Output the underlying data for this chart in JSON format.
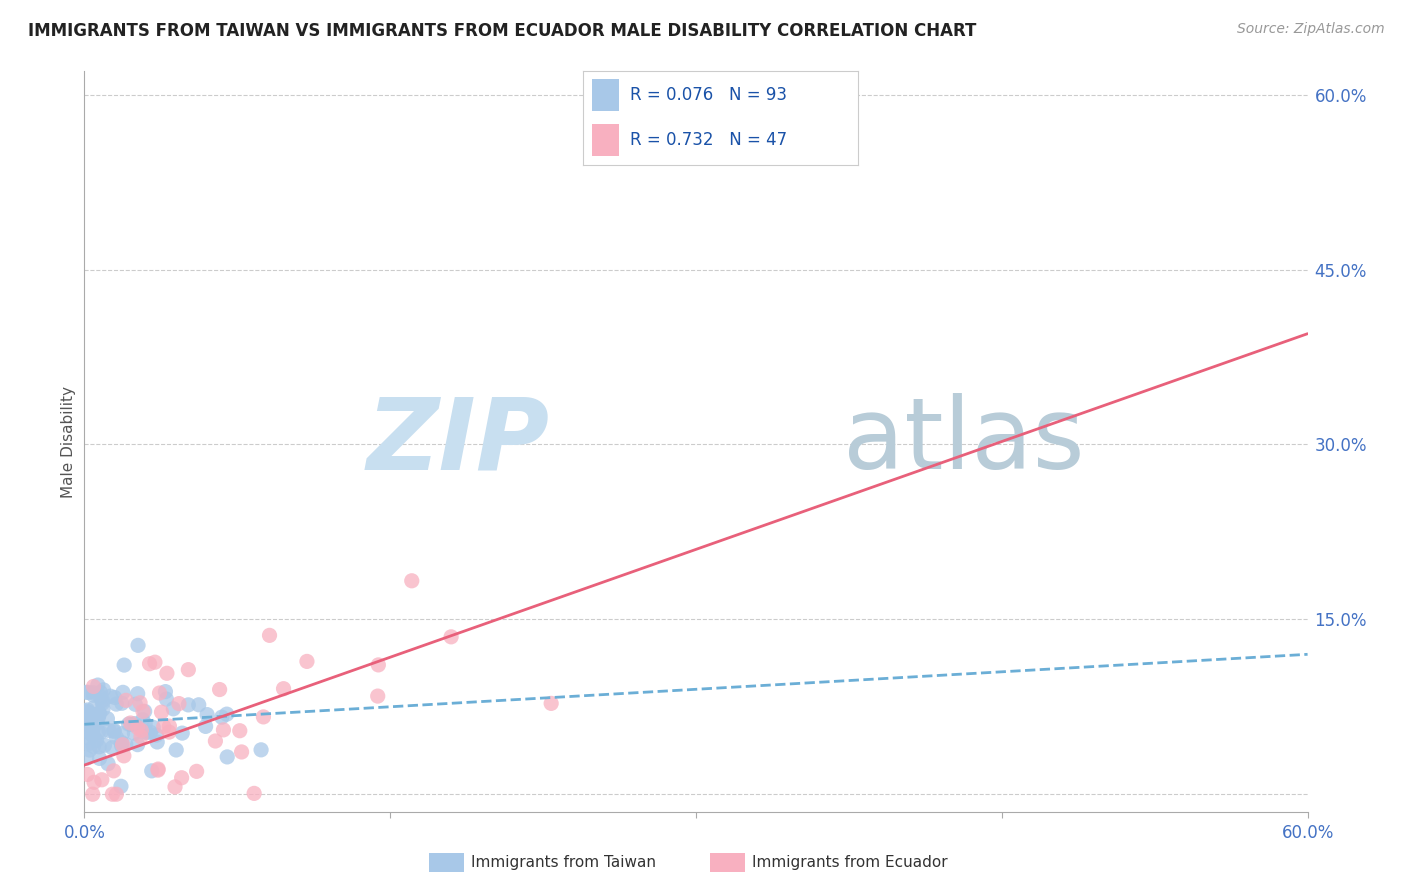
{
  "title": "IMMIGRANTS FROM TAIWAN VS IMMIGRANTS FROM ECUADOR MALE DISABILITY CORRELATION CHART",
  "source": "Source: ZipAtlas.com",
  "ylabel": "Male Disability",
  "xlim": [
    0.0,
    0.6
  ],
  "ylim": [
    -0.015,
    0.62
  ],
  "xticks": [
    0.0,
    0.15,
    0.3,
    0.45,
    0.6
  ],
  "yticks": [
    0.0,
    0.15,
    0.3,
    0.45,
    0.6
  ],
  "xtick_labels_bottom": [
    "0.0%",
    "",
    "",
    "",
    "60.0%"
  ],
  "ytick_labels_right": [
    "",
    "15.0%",
    "30.0%",
    "45.0%",
    "60.0%"
  ],
  "taiwan_R": 0.076,
  "taiwan_N": 93,
  "ecuador_R": 0.732,
  "ecuador_N": 47,
  "taiwan_color": "#a8c8e8",
  "ecuador_color": "#f8b0c0",
  "taiwan_line_color": "#6baed6",
  "ecuador_line_color": "#e8607a",
  "watermark_zip_color": "#c8dff0",
  "watermark_atlas_color": "#b0c8d8",
  "legend_color": "#1a52a8",
  "taiwan_seed": 42,
  "ecuador_seed": 7,
  "taiwan_trend_x0": 0.0,
  "taiwan_trend_y0": 0.06,
  "taiwan_trend_x1": 0.6,
  "taiwan_trend_y1": 0.12,
  "ecuador_trend_x0": 0.0,
  "ecuador_trend_y0": 0.025,
  "ecuador_trend_x1": 0.6,
  "ecuador_trend_y1": 0.395
}
